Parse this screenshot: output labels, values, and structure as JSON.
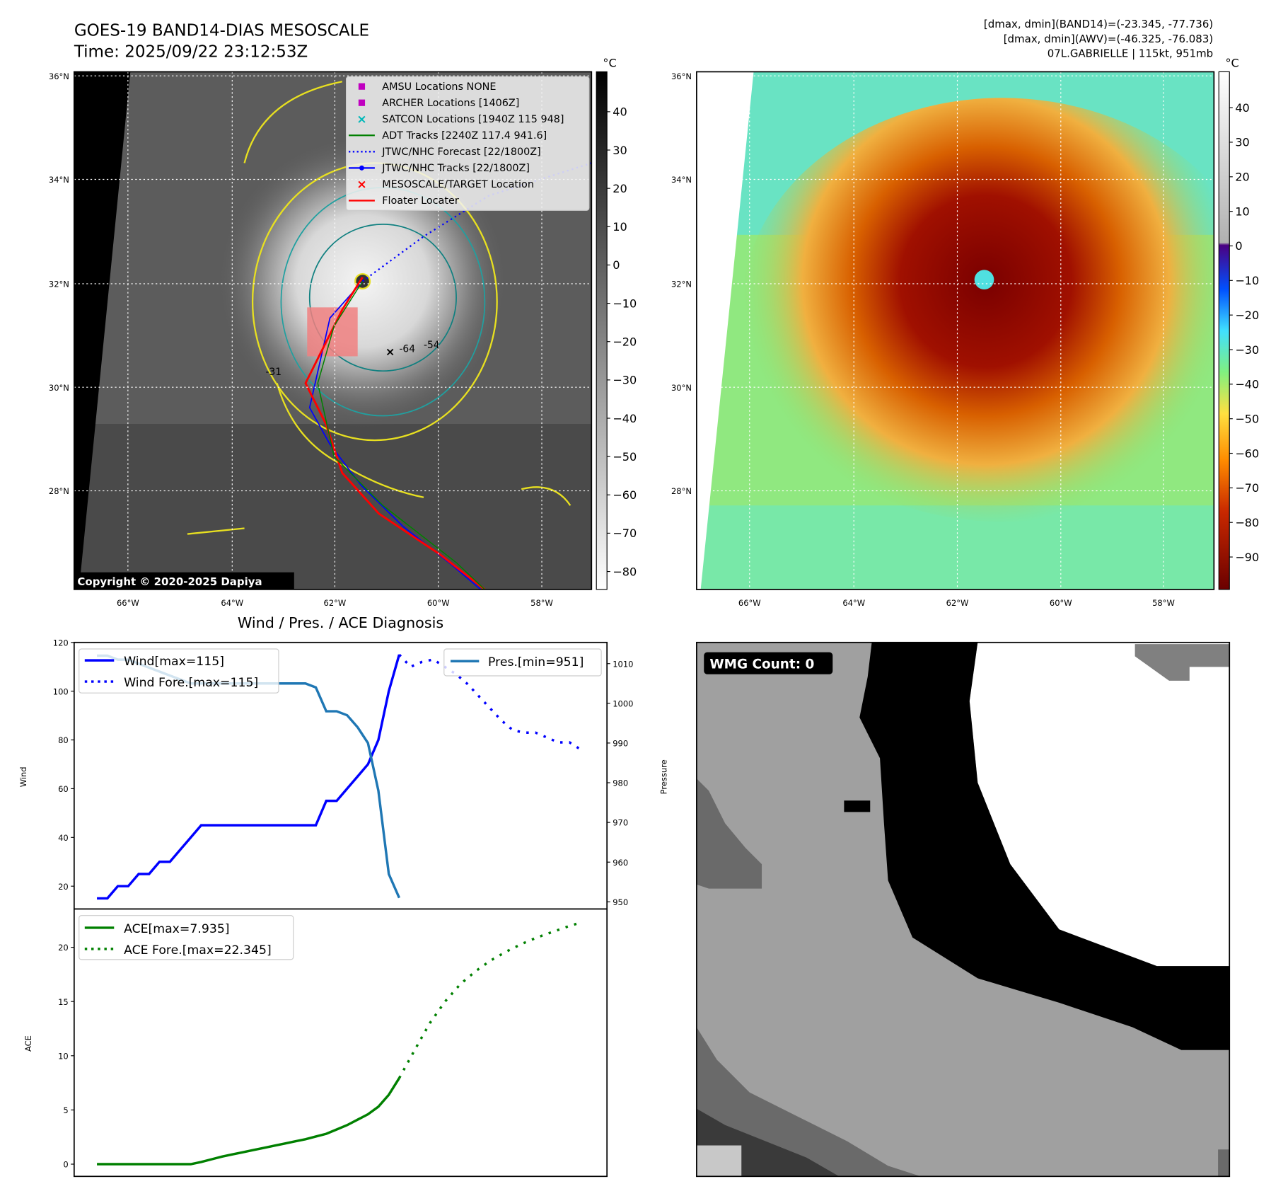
{
  "header": {
    "title": "GOES-19 BAND14-DIAS MESOSCALE",
    "time": "Time: 2025/09/22 23:12:53Z",
    "info": [
      "[dmax, dmin](BAND14)=(-23.345, -77.736)",
      "[dmax, dmin](AWV)=(-46.325, -76.083)",
      "07L.GABRIELLE | 115kt, 951mb"
    ]
  },
  "map": {
    "lat_labels": [
      "36°N",
      "34°N",
      "32°N",
      "30°N",
      "28°N"
    ],
    "lon_labels": [
      "66°W",
      "64°W",
      "62°W",
      "60°W",
      "58°W"
    ],
    "copyright": "Copyright © 2020-2025 Dapiya",
    "contour_labels": [
      "-31",
      "-54",
      "-64"
    ],
    "legend": [
      {
        "label": "AMSU Locations NONE",
        "marker": "square",
        "color": "#c000c0"
      },
      {
        "label": "ARCHER Locations [1406Z]",
        "marker": "square",
        "color": "#c000c0"
      },
      {
        "label": "SATCON Locations [1940Z 115 948]",
        "marker": "x",
        "color": "#00b8b8"
      },
      {
        "label": "ADT Tracks [2240Z 117.4 941.6]",
        "marker": "line",
        "color": "#008000"
      },
      {
        "label": "JTWC/NHC Forecast [22/1800Z]",
        "marker": "dotted",
        "color": "#0000ff"
      },
      {
        "label": "JTWC/NHC Tracks [22/1800Z]",
        "marker": "line-dot",
        "color": "#0000ff"
      },
      {
        "label": "MESOSCALE/TARGET Location",
        "marker": "x",
        "color": "#ff0000"
      },
      {
        "label": "Floater Locater",
        "marker": "line",
        "color": "#ff0000"
      }
    ]
  },
  "colorbar_left": {
    "unit": "°C",
    "ticks": [
      "40",
      "30",
      "20",
      "10",
      "0",
      "−10",
      "−20",
      "−30",
      "−40",
      "−50",
      "−60",
      "−70",
      "−80"
    ]
  },
  "colorbar_right": {
    "unit": "°C",
    "ticks": [
      "40",
      "30",
      "20",
      "10",
      "0",
      "−10",
      "−20",
      "−30",
      "−40",
      "−50",
      "−60",
      "−70",
      "−80",
      "−90"
    ]
  },
  "wmg": {
    "label": "WMG Count: 0"
  },
  "chart_data": [
    {
      "type": "line",
      "title": "Wind / Pres. / ACE Diagnosis",
      "ylabel": "Wind",
      "y2label": "Pressure",
      "ylim": [
        12,
        120
      ],
      "y2lim": [
        948,
        1012
      ],
      "yticks": [
        20,
        40,
        60,
        80,
        100,
        120
      ],
      "y2ticks": [
        950,
        960,
        970,
        980,
        990,
        1000,
        1010
      ],
      "series": [
        {
          "name": "Wind[max=115]",
          "color": "#0000ff",
          "style": "solid",
          "values": [
            15,
            15,
            20,
            20,
            25,
            25,
            30,
            30,
            35,
            40,
            45,
            45,
            45,
            45,
            45,
            45,
            45,
            45,
            45,
            45,
            45,
            45,
            55,
            55,
            60,
            65,
            70,
            80,
            100,
            115
          ]
        },
        {
          "name": "Wind Fore.[max=115]",
          "color": "#0000ff",
          "style": "dotted",
          "values": [
            115,
            110,
            112,
            113,
            110,
            107,
            103,
            98,
            93,
            88,
            84,
            83,
            83,
            81,
            79,
            79,
            76
          ]
        },
        {
          "name": "Pres.[min=951]",
          "color": "#1f77b4",
          "style": "solid",
          "axis": "right",
          "values": [
            1012,
            1012,
            1011,
            1011,
            1010,
            1009,
            1008,
            1007,
            1006,
            1005,
            1005,
            1005,
            1005,
            1005,
            1005,
            1005,
            1005,
            1005,
            1005,
            1005,
            1005,
            1004,
            998,
            998,
            997,
            994,
            990,
            978,
            957,
            951
          ]
        }
      ]
    },
    {
      "type": "line",
      "ylabel": "ACE",
      "ylim": [
        -1,
        23
      ],
      "yticks": [
        0,
        5,
        10,
        15,
        20
      ],
      "series": [
        {
          "name": "ACE[max=7.935]",
          "color": "#008000",
          "style": "solid",
          "values": [
            0,
            0,
            0,
            0,
            0,
            0,
            0,
            0,
            0,
            0,
            0.2,
            0.45,
            0.7,
            0.9,
            1.1,
            1.3,
            1.5,
            1.7,
            1.9,
            2.1,
            2.3,
            2.55,
            2.8,
            3.2,
            3.6,
            4.1,
            4.6,
            5.3,
            6.4,
            7.935
          ]
        },
        {
          "name": "ACE Fore.[max=22.345]",
          "color": "#008000",
          "style": "dotted",
          "values": [
            7.935,
            10.5,
            13,
            15,
            16.6,
            17.8,
            18.8,
            19.6,
            20.3,
            20.9,
            21.4,
            21.9,
            22.345
          ]
        }
      ]
    }
  ]
}
